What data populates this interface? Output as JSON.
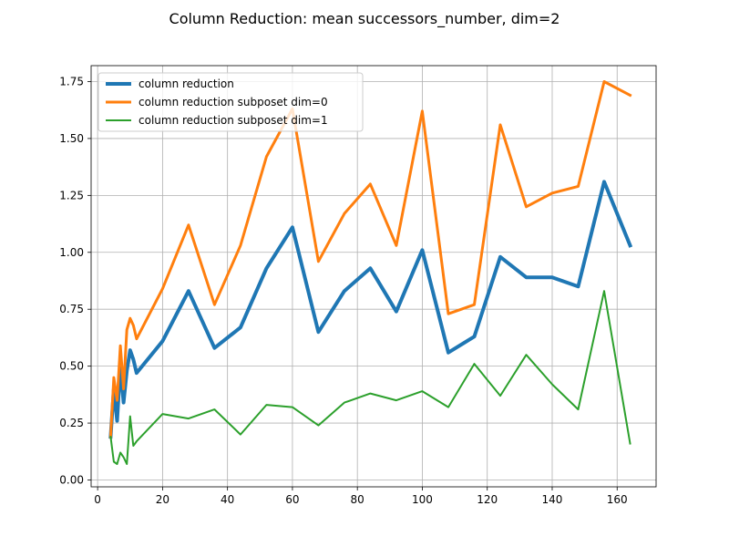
{
  "chart_data": {
    "type": "line",
    "title": "Column Reduction: mean successors_number, dim=2",
    "xlabel": "",
    "ylabel": "",
    "xlim": [
      -2,
      172
    ],
    "ylim": [
      -0.03,
      1.82
    ],
    "x_ticks": [
      0,
      20,
      40,
      60,
      80,
      100,
      120,
      140,
      160
    ],
    "y_ticks": [
      0.0,
      0.25,
      0.5,
      0.75,
      1.0,
      1.25,
      1.5,
      1.75
    ],
    "x_tick_labels": [
      "0",
      "20",
      "40",
      "60",
      "80",
      "100",
      "120",
      "140",
      "160"
    ],
    "y_tick_labels": [
      "0.00",
      "0.25",
      "0.50",
      "0.75",
      "1.00",
      "1.25",
      "1.50",
      "1.75"
    ],
    "grid": true,
    "legend_position": "top-left",
    "x": [
      4,
      5,
      6,
      7,
      8,
      9,
      10,
      11,
      12,
      20,
      28,
      36,
      44,
      52,
      60,
      68,
      76,
      84,
      92,
      100,
      108,
      116,
      124,
      132,
      140,
      148,
      156,
      164
    ],
    "series": [
      {
        "name": "column reduction",
        "color": "#1f77b4",
        "line_width": 4,
        "values": [
          0.19,
          0.4,
          0.26,
          0.5,
          0.34,
          0.48,
          0.57,
          0.53,
          0.47,
          0.61,
          0.83,
          0.58,
          0.67,
          0.93,
          1.11,
          0.65,
          0.83,
          0.93,
          0.74,
          1.01,
          0.56,
          0.63,
          0.98,
          0.89,
          0.89,
          0.85,
          1.31,
          1.03
        ]
      },
      {
        "name": "column reduction subposet dim=0",
        "color": "#ff7f0e",
        "line_width": 3,
        "values": [
          0.19,
          0.45,
          0.35,
          0.59,
          0.4,
          0.66,
          0.71,
          0.68,
          0.62,
          0.84,
          1.12,
          0.77,
          1.03,
          1.42,
          1.63,
          0.96,
          1.17,
          1.3,
          1.03,
          1.62,
          0.73,
          0.77,
          1.56,
          1.2,
          1.26,
          1.29,
          1.75,
          1.69
        ]
      },
      {
        "name": "column reduction subposet dim=1",
        "color": "#2ca02c",
        "line_width": 2,
        "values": [
          0.19,
          0.08,
          0.07,
          0.12,
          0.1,
          0.07,
          0.28,
          0.15,
          0.17,
          0.29,
          0.27,
          0.31,
          0.2,
          0.33,
          0.32,
          0.24,
          0.34,
          0.38,
          0.35,
          0.39,
          0.32,
          0.51,
          0.37,
          0.55,
          0.42,
          0.31,
          0.83,
          0.16
        ]
      }
    ]
  }
}
